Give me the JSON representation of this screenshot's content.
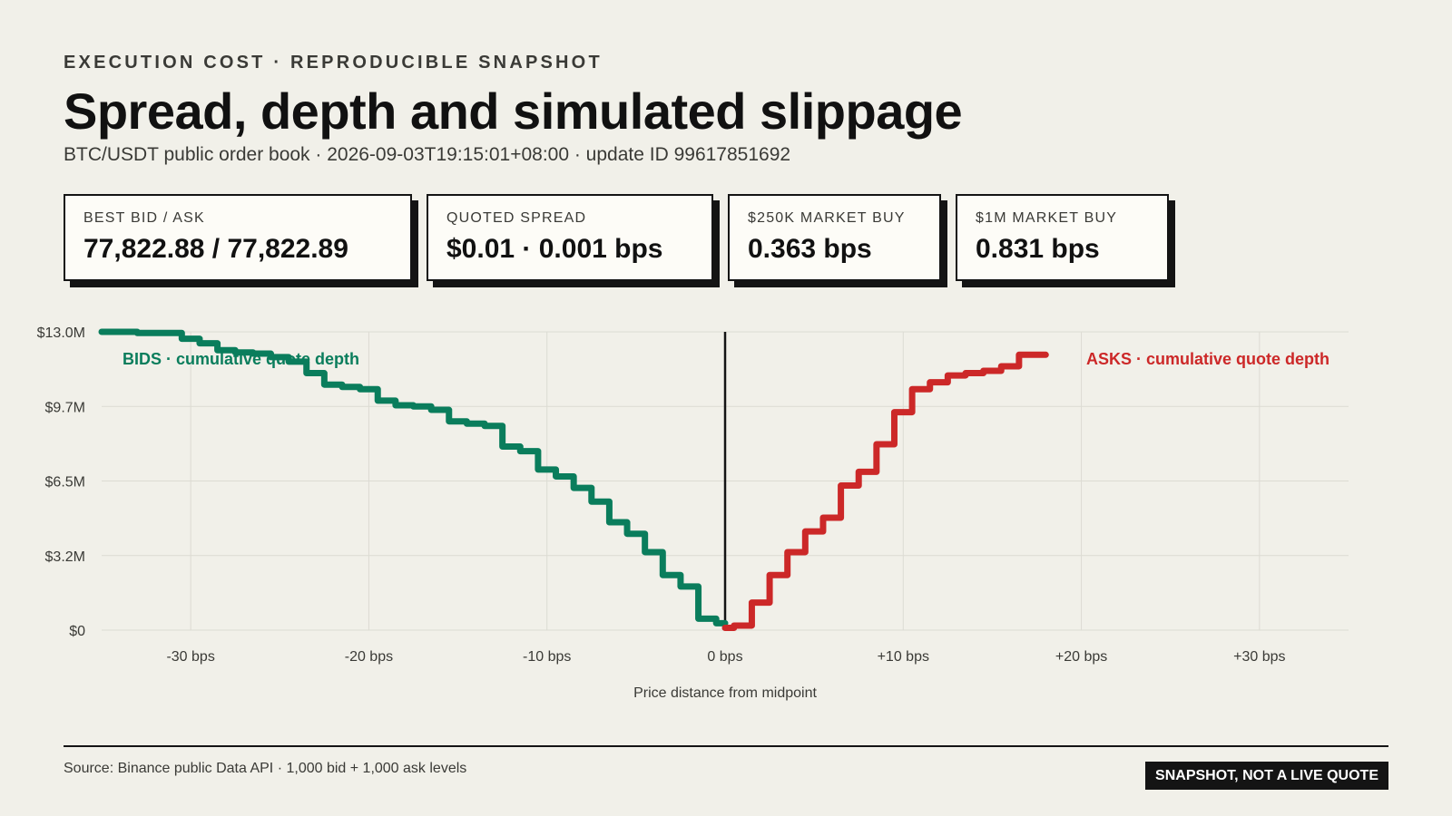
{
  "header": {
    "eyebrow": "EXECUTION COST · REPRODUCIBLE SNAPSHOT",
    "title": "Spread, depth and simulated slippage",
    "subtitle": "BTC/USDT public order book · 2026-09-03T19:15:01+08:00 · update ID 99617851692"
  },
  "cards": [
    {
      "label": "BEST BID / ASK",
      "value": "77,822.88 / 77,822.89"
    },
    {
      "label": "QUOTED SPREAD",
      "value": "$0.01 · 0.001 bps"
    },
    {
      "label": "$250K MARKET BUY",
      "value": "0.363 bps"
    },
    {
      "label": "$1M MARKET BUY",
      "value": "0.831 bps"
    }
  ],
  "chart_data": {
    "type": "line",
    "title": "",
    "xlabel": "Price distance from midpoint",
    "ylabel": "",
    "xlim": [
      -35,
      35
    ],
    "ylim": [
      0,
      13.0
    ],
    "y_unit": "$M",
    "x_ticks": [
      -30,
      -20,
      -10,
      0,
      10,
      20,
      30
    ],
    "x_tick_labels": [
      "-30 bps",
      "-20 bps",
      "-10 bps",
      "0 bps",
      "+10 bps",
      "+20 bps",
      "+30 bps"
    ],
    "y_ticks": [
      0,
      3.25,
      6.5,
      9.75,
      13.0
    ],
    "y_tick_labels": [
      "$0",
      "$3.2M",
      "$6.5M",
      "$9.7M",
      "$13.0M"
    ],
    "grid": true,
    "midline_x": 0,
    "series": [
      {
        "name": "BIDS · cumulative quote depth",
        "color": "#0a7d5c",
        "x": [
          -35,
          -31,
          -30,
          -29,
          -28,
          -27,
          -26,
          -25,
          -24,
          -23,
          -22,
          -21,
          -20,
          -19,
          -18,
          -17,
          -16,
          -15,
          -14,
          -13,
          -12,
          -11,
          -10,
          -9,
          -8,
          -7,
          -6,
          -5,
          -4,
          -3,
          -2,
          -1,
          0
        ],
        "y": [
          13.0,
          12.95,
          12.7,
          12.5,
          12.2,
          12.1,
          12.05,
          11.9,
          11.7,
          11.2,
          10.7,
          10.6,
          10.5,
          10.0,
          9.8,
          9.75,
          9.6,
          9.1,
          9.0,
          8.9,
          8.0,
          7.8,
          7.0,
          6.7,
          6.2,
          5.6,
          4.7,
          4.2,
          3.4,
          2.4,
          1.9,
          0.5,
          0.3
        ]
      },
      {
        "name": "ASKS · cumulative quote depth",
        "color": "#cc2828",
        "x": [
          0,
          1,
          2,
          3,
          4,
          5,
          6,
          7,
          8,
          9,
          10,
          11,
          12,
          13,
          14,
          15,
          16,
          17,
          18
        ],
        "y": [
          0.1,
          0.2,
          1.2,
          2.4,
          3.4,
          4.3,
          4.9,
          6.3,
          6.9,
          8.1,
          9.5,
          10.5,
          10.8,
          11.1,
          11.2,
          11.3,
          11.5,
          12.0,
          12.0
        ]
      }
    ]
  },
  "footer": {
    "source": "Source: Binance public Data API · 1,000 bid + 1,000 ask levels",
    "badge": "SNAPSHOT, NOT A LIVE QUOTE"
  }
}
